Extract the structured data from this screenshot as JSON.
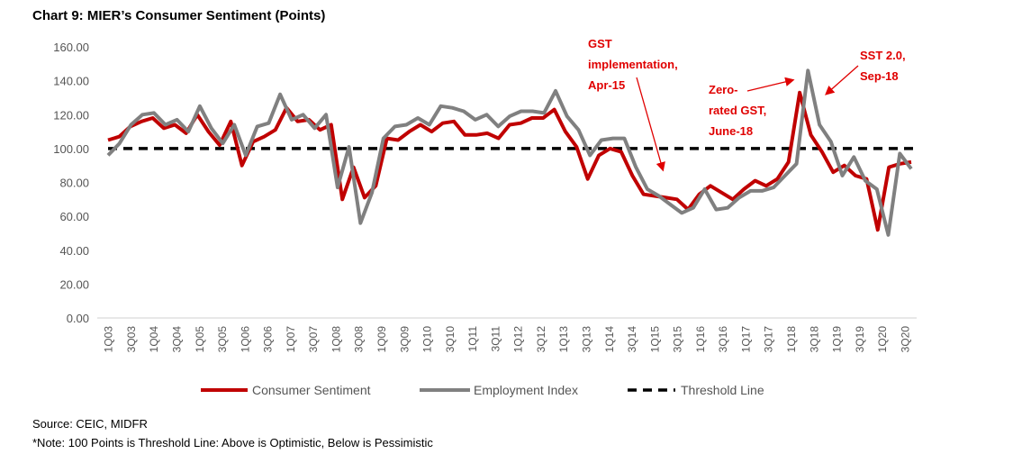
{
  "chart_data": {
    "type": "line",
    "title": "Chart 9: MIER’s Consumer Sentiment (Points)",
    "ylim": [
      0,
      160
    ],
    "yticks": [
      "0.00",
      "20.00",
      "40.00",
      "60.00",
      "80.00",
      "100.00",
      "120.00",
      "140.00",
      "160.00"
    ],
    "x_tick_labels": [
      "1Q03",
      "3Q03",
      "1Q04",
      "3Q04",
      "1Q05",
      "3Q05",
      "1Q06",
      "3Q06",
      "1Q07",
      "3Q07",
      "1Q08",
      "3Q08",
      "1Q09",
      "3Q09",
      "1Q10",
      "3Q10",
      "1Q11",
      "3Q11",
      "1Q12",
      "3Q12",
      "1Q13",
      "3Q13",
      "1Q14",
      "3Q14",
      "1Q15",
      "3Q15",
      "1Q16",
      "3Q16",
      "1Q17",
      "3Q17",
      "1Q18",
      "3Q18",
      "1Q19",
      "3Q19",
      "1Q20",
      "3Q20"
    ],
    "grid": false,
    "legend_position": "bottom",
    "series": [
      {
        "name": "Consumer Sentiment",
        "color": "#c00000",
        "values": [
          105,
          107,
          113,
          116,
          118,
          112,
          114,
          109,
          120,
          110,
          102,
          116,
          90,
          104,
          107,
          111,
          124,
          116,
          117,
          111,
          114,
          70,
          89,
          71,
          78,
          106,
          105,
          110,
          114,
          110,
          115,
          116,
          108,
          108,
          109,
          106,
          114,
          115,
          118,
          118,
          123,
          110,
          101,
          82,
          96,
          100,
          98,
          84,
          73,
          72,
          71,
          70,
          64,
          73,
          78,
          74,
          70,
          76,
          81,
          78,
          82,
          92,
          133,
          108,
          98,
          86,
          90,
          84,
          82,
          52,
          89,
          91,
          92
        ]
      },
      {
        "name": "Employment Index",
        "color": "#808080",
        "values": [
          96,
          103,
          114,
          120,
          121,
          114,
          117,
          110,
          125,
          112,
          103,
          114,
          96,
          113,
          115,
          132,
          117,
          120,
          112,
          120,
          77,
          101,
          56,
          74,
          106,
          113,
          114,
          118,
          114,
          125,
          124,
          122,
          117,
          120,
          113,
          119,
          122,
          122,
          121,
          134,
          119,
          111,
          96,
          105,
          106,
          106,
          89,
          76,
          72,
          67,
          62,
          65,
          76,
          64,
          65,
          71,
          75,
          75,
          77,
          84,
          91,
          146,
          114,
          104,
          84,
          95,
          81,
          76,
          49,
          97,
          88
        ]
      },
      {
        "name": "Threshold Line",
        "color": "#000000",
        "values": [
          100,
          100
        ]
      }
    ],
    "annotations": [
      {
        "lines": [
          "GST",
          "implementation,",
          "Apr-15"
        ]
      },
      {
        "lines": [
          "Zero-",
          "rated GST,",
          "June-18"
        ]
      },
      {
        "lines": [
          "SST 2.0,",
          "Sep-18"
        ]
      }
    ]
  },
  "notes": {
    "source": "Source: CEIC, MIDFR",
    "note": "*Note: 100 Points is Threshold Line: Above is Optimistic, Below is Pessimistic"
  }
}
